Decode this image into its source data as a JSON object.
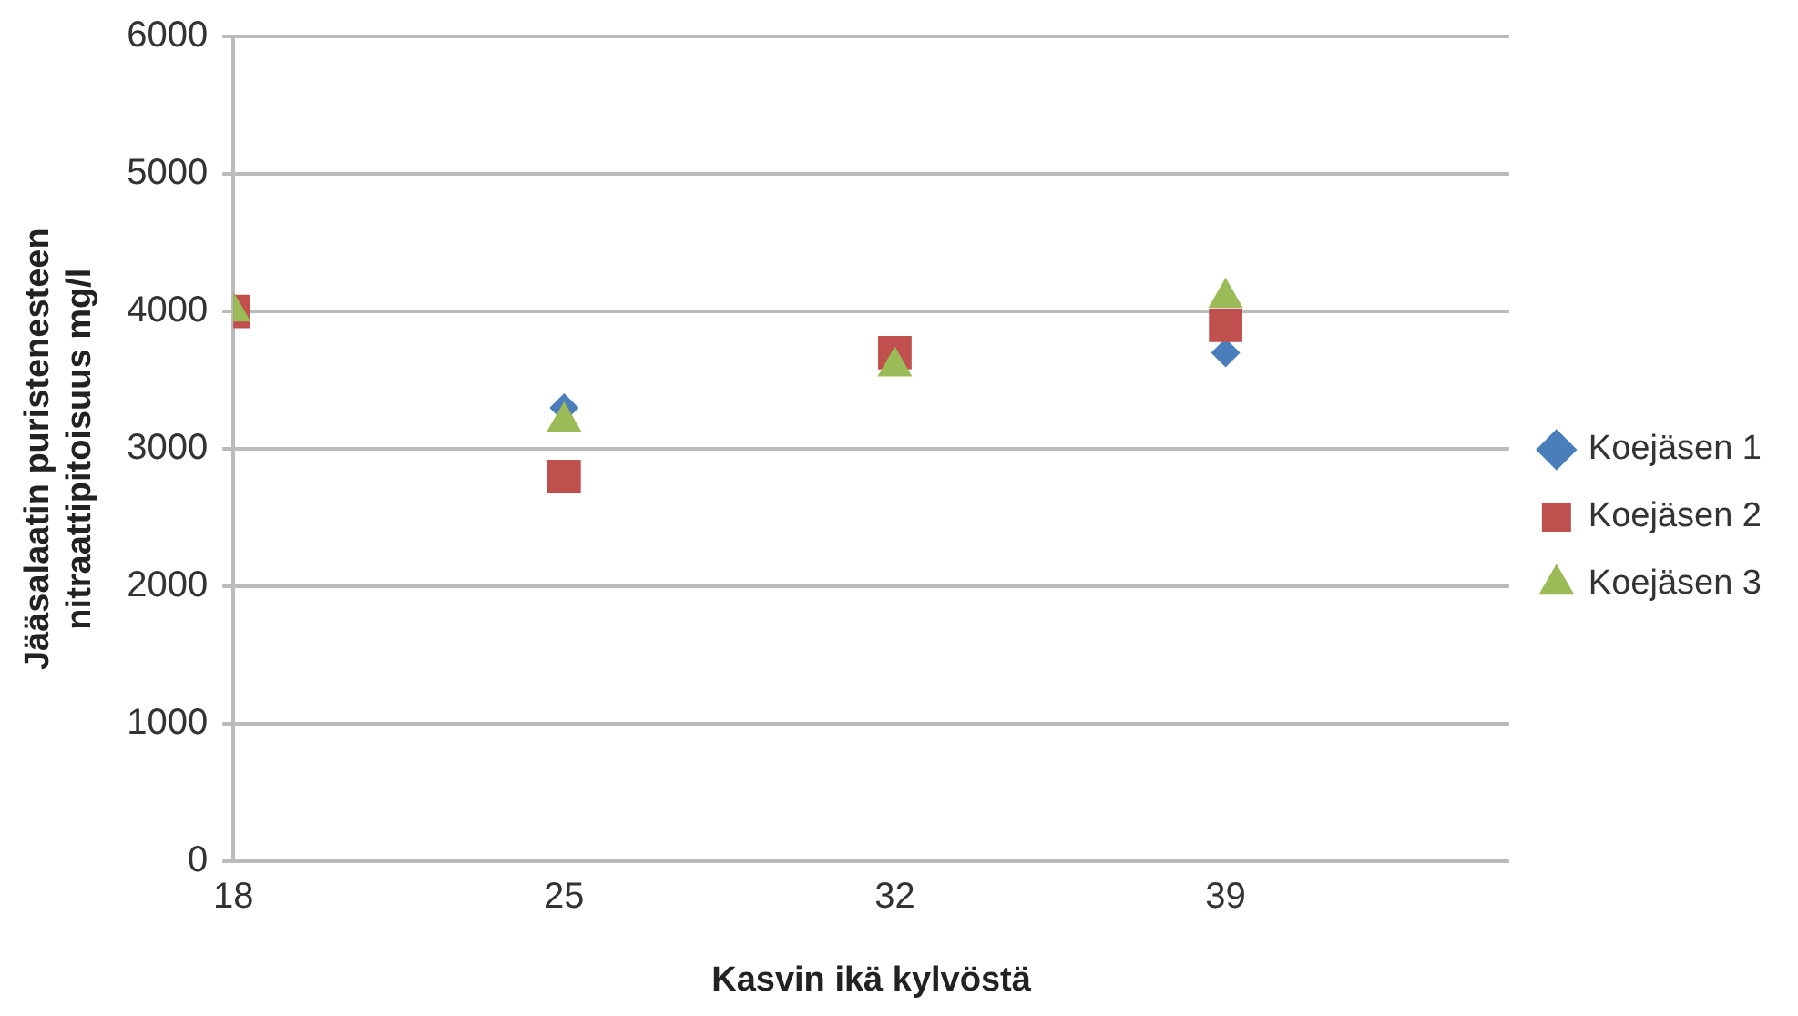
{
  "chart_data": {
    "type": "scatter",
    "xlabel": "Kasvin ikä kylvöstä",
    "ylabel": "Jääsalaatin puristenesteen\nnitraattipitoisuus mg/l",
    "x": [
      18,
      25,
      32,
      39
    ],
    "xlim": [
      18,
      45
    ],
    "xticks": [
      18,
      25,
      32,
      39
    ],
    "ylim": [
      0,
      6000
    ],
    "yticks": [
      0,
      1000,
      2000,
      3000,
      4000,
      5000,
      6000
    ],
    "grid": "y",
    "legend": "right",
    "series": [
      {
        "name": "Koejäsen 1",
        "color": "#4a7ebb",
        "marker": "diamond",
        "values": [
          null,
          3300,
          null,
          3700
        ]
      },
      {
        "name": "Koejäsen 2",
        "color": "#c0504d",
        "marker": "square",
        "values": [
          4000,
          2800,
          3700,
          3900
        ]
      },
      {
        "name": "Koejäsen 3",
        "color": "#9bbb59",
        "marker": "triangle",
        "values": [
          4000,
          3200,
          3600,
          4100
        ]
      }
    ]
  }
}
